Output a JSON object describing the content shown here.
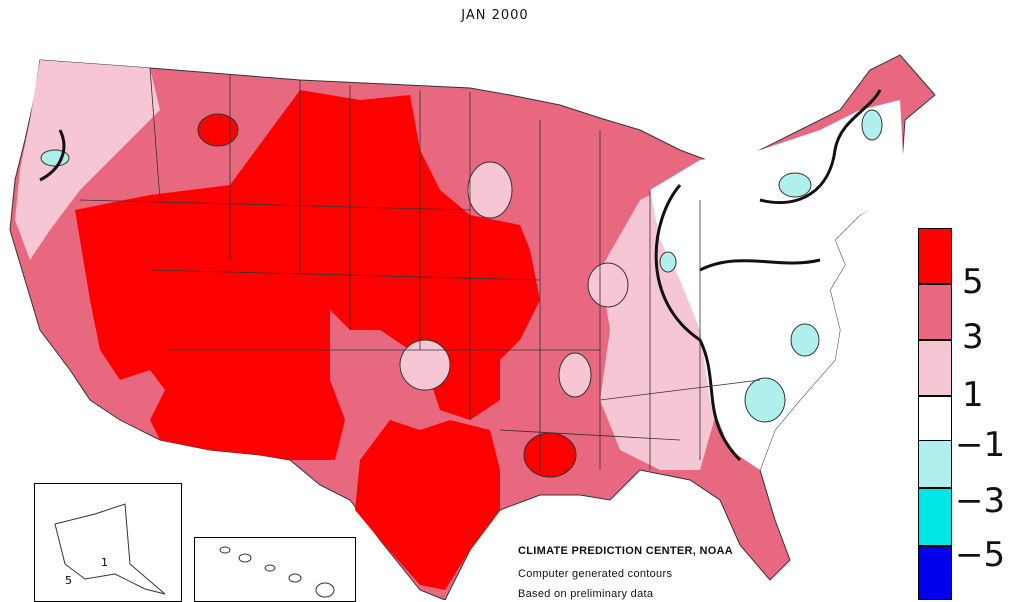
{
  "title": "JAN 2000",
  "legend": {
    "labels": [
      "5",
      "3",
      "1",
      "−1",
      "−3",
      "−5"
    ],
    "colors": [
      "#ff0000",
      "#e8687f",
      "#f7c6d4",
      "#ffffff",
      "#b0f0ec",
      "#00e6e6",
      "#0000ee"
    ]
  },
  "credits": {
    "line1": "CLIMATE PREDICTION CENTER, NOAA",
    "line2": "Computer generated contours",
    "line3": "Based on preliminary data"
  },
  "inset_labels": {
    "alaska_1": "1",
    "alaska_5": "5"
  }
}
